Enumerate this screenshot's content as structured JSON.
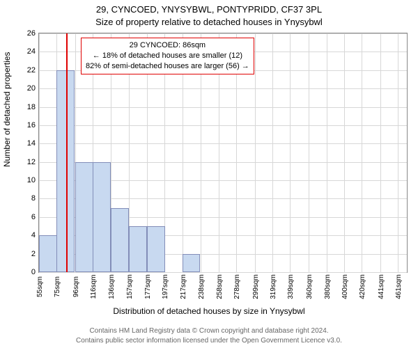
{
  "title_line1": "29, CYNCOED, YNYSYBWL, PONTYPRIDD, CF37 3PL",
  "title_line2": "Size of property relative to detached houses in Ynysybwl",
  "ylabel": "Number of detached properties",
  "xlabel": "Distribution of detached houses by size in Ynysybwl",
  "footer_line1": "Contains HM Land Registry data © Crown copyright and database right 2024.",
  "footer_line2": "Contains public sector information licensed under the Open Government Licence v3.0.",
  "annotation": {
    "line1": "29 CYNCOED: 86sqm",
    "line2": "← 18% of detached houses are smaller (12)",
    "line3": "82% of semi-detached houses are larger (56) →"
  },
  "chart": {
    "type": "histogram",
    "ylim": [
      0,
      26
    ],
    "ytick_step": 2,
    "xlim": [
      55,
      471
    ],
    "xtick_step": 20.3,
    "xtick_suffix": "sqm",
    "xtick_values": [
      55,
      75,
      96,
      116,
      136,
      157,
      177,
      197,
      217,
      238,
      258,
      278,
      299,
      319,
      339,
      360,
      380,
      400,
      420,
      441,
      461
    ],
    "bar_color": "#c8d9f0",
    "bar_border": "rgba(0,0,80,0.35)",
    "grid_color": "#d7d7d7",
    "bin_width": 20.3,
    "bins": [
      {
        "x": 55,
        "count": 4
      },
      {
        "x": 75,
        "count": 22
      },
      {
        "x": 96,
        "count": 12
      },
      {
        "x": 116,
        "count": 12
      },
      {
        "x": 136,
        "count": 7
      },
      {
        "x": 157,
        "count": 5
      },
      {
        "x": 177,
        "count": 5
      },
      {
        "x": 197,
        "count": 0
      },
      {
        "x": 217,
        "count": 2
      },
      {
        "x": 238,
        "count": 0
      }
    ],
    "marker": {
      "x": 86,
      "color": "#e00000"
    }
  }
}
